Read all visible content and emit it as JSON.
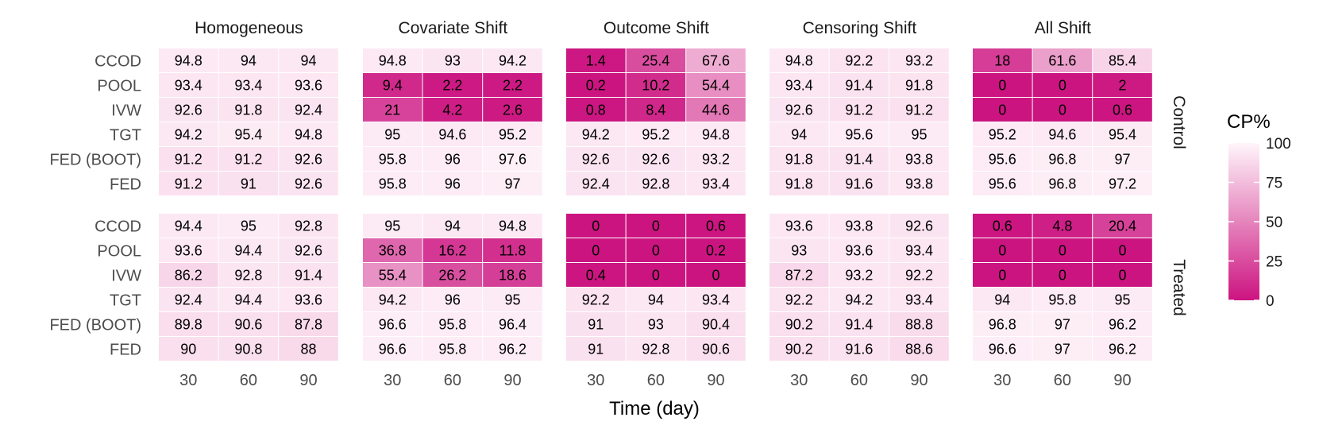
{
  "chart_data": {
    "type": "heatmap",
    "xlabel": "Time (day)",
    "x": [
      "30",
      "60",
      "90"
    ],
    "rows": [
      "CCOD",
      "POOL",
      "IVW",
      "TGT",
      "FED (BOOT)",
      "FED"
    ],
    "scenarios": [
      "Homogeneous",
      "Covariate Shift",
      "Outcome Shift",
      "Censoring Shift",
      "All Shift"
    ],
    "groups": [
      "Control",
      "Treated"
    ],
    "legend": {
      "title": "CP%",
      "ticks": [
        "100",
        "75",
        "50",
        "25",
        "0"
      ],
      "range": [
        0,
        100
      ],
      "low_color": "#cc1480",
      "high_color": "#fff5fa"
    },
    "values": {
      "Control": [
        [
          [
            94.8,
            94,
            94
          ],
          [
            93.4,
            93.4,
            93.6
          ],
          [
            92.6,
            91.8,
            92.4
          ],
          [
            94.2,
            95.4,
            94.8
          ],
          [
            91.2,
            91.2,
            92.6
          ],
          [
            91.2,
            91,
            92.6
          ]
        ],
        [
          [
            94.8,
            93,
            94.2
          ],
          [
            9.4,
            2.2,
            2.2
          ],
          [
            21,
            4.2,
            2.6
          ],
          [
            95,
            94.6,
            95.2
          ],
          [
            95.8,
            96,
            97.6
          ],
          [
            95.8,
            96,
            97
          ]
        ],
        [
          [
            1.4,
            25.4,
            67.6
          ],
          [
            0.2,
            10.2,
            54.4
          ],
          [
            0.8,
            8.4,
            44.6
          ],
          [
            94.2,
            95.2,
            94.8
          ],
          [
            92.6,
            92.6,
            93.2
          ],
          [
            92.4,
            92.8,
            93.4
          ]
        ],
        [
          [
            94.8,
            92.2,
            93.2
          ],
          [
            93.4,
            91.4,
            91.8
          ],
          [
            92.6,
            91.2,
            91.2
          ],
          [
            94,
            95.6,
            95
          ],
          [
            91.8,
            91.4,
            93.8
          ],
          [
            91.8,
            91.6,
            93.8
          ]
        ],
        [
          [
            18,
            61.6,
            85.4
          ],
          [
            0,
            0,
            2
          ],
          [
            0,
            0,
            0.6
          ],
          [
            95.2,
            94.6,
            95.4
          ],
          [
            95.6,
            96.8,
            97
          ],
          [
            95.6,
            96.8,
            97.2
          ]
        ]
      ],
      "Treated": [
        [
          [
            94.4,
            95,
            92.8
          ],
          [
            93.6,
            94.4,
            92.6
          ],
          [
            86.2,
            92.8,
            91.4
          ],
          [
            92.4,
            94.4,
            93.6
          ],
          [
            89.8,
            90.6,
            87.8
          ],
          [
            90,
            90.8,
            88
          ]
        ],
        [
          [
            95,
            94,
            94.8
          ],
          [
            36.8,
            16.2,
            11.8
          ],
          [
            55.4,
            26.2,
            18.6
          ],
          [
            94.2,
            96,
            95
          ],
          [
            96.6,
            95.8,
            96.4
          ],
          [
            96.6,
            95.8,
            96.2
          ]
        ],
        [
          [
            0,
            0,
            0.6
          ],
          [
            0,
            0,
            0.2
          ],
          [
            0.4,
            0,
            0
          ],
          [
            92.2,
            94,
            93.4
          ],
          [
            91,
            93,
            90.4
          ],
          [
            91,
            92.8,
            90.6
          ]
        ],
        [
          [
            93.6,
            93.8,
            92.6
          ],
          [
            93,
            93.6,
            93.4
          ],
          [
            87.2,
            93.2,
            92.2
          ],
          [
            92.2,
            94.2,
            93.4
          ],
          [
            90.2,
            91.4,
            88.8
          ],
          [
            90.2,
            91.6,
            88.6
          ]
        ],
        [
          [
            0.6,
            4.8,
            20.4
          ],
          [
            0,
            0,
            0
          ],
          [
            0,
            0,
            0
          ],
          [
            94,
            95.8,
            95
          ],
          [
            96.8,
            97,
            96.2
          ],
          [
            96.6,
            97,
            96.2
          ]
        ]
      ]
    }
  }
}
